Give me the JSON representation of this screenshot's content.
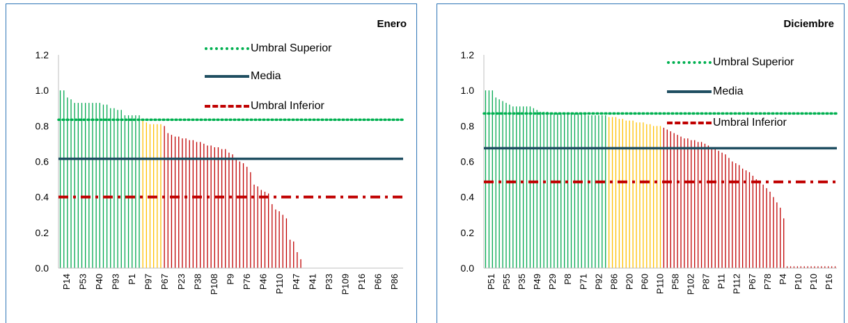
{
  "charts": [
    {
      "title": "Enero",
      "type": "bar",
      "ylim": [
        0,
        1.2
      ],
      "yticks": [
        "0.0",
        "0.2",
        "0.4",
        "0.6",
        "0.8",
        "1.0",
        "1.2"
      ],
      "xticks": [
        "P14",
        "P53",
        "P40",
        "P93",
        "P1",
        "P97",
        "P67",
        "P23",
        "P38",
        "P108",
        "P9",
        "P76",
        "P46",
        "P110",
        "P47",
        "P41",
        "P33",
        "P109",
        "P16",
        "P66",
        "P86"
      ],
      "values": [
        1.0,
        1.0,
        0.96,
        0.95,
        0.93,
        0.93,
        0.93,
        0.93,
        0.93,
        0.93,
        0.93,
        0.93,
        0.92,
        0.92,
        0.9,
        0.9,
        0.89,
        0.89,
        0.86,
        0.86,
        0.86,
        0.86,
        0.86,
        0.84,
        0.82,
        0.81,
        0.81,
        0.81,
        0.81,
        0.8,
        0.76,
        0.75,
        0.74,
        0.74,
        0.73,
        0.73,
        0.72,
        0.72,
        0.71,
        0.71,
        0.7,
        0.69,
        0.69,
        0.68,
        0.68,
        0.67,
        0.67,
        0.65,
        0.64,
        0.61,
        0.6,
        0.59,
        0.57,
        0.54,
        0.47,
        0.46,
        0.44,
        0.43,
        0.42,
        0.36,
        0.33,
        0.32,
        0.3,
        0.28,
        0.16,
        0.15,
        0.09,
        0.05,
        0,
        0,
        0,
        0,
        0,
        0,
        0,
        0,
        0,
        0,
        0,
        0,
        0,
        0,
        0,
        0,
        0,
        0,
        0,
        0,
        0,
        0,
        0,
        0,
        0,
        0,
        0,
        0
      ],
      "segments": [
        {
          "end": 23,
          "color": "#00a84f"
        },
        {
          "end": 29,
          "color": "#ffc000"
        },
        {
          "end": 96,
          "color": "#c00000"
        }
      ],
      "umbral_superior": 0.835,
      "media": 0.615,
      "umbral_inferior": 0.4
    },
    {
      "title": "Diciembre",
      "type": "bar",
      "ylim": [
        0,
        1.2
      ],
      "yticks": [
        "0.0",
        "0.2",
        "0.4",
        "0.6",
        "0.8",
        "1.0",
        "1.2"
      ],
      "xticks": [
        "P51",
        "P55",
        "P35",
        "P49",
        "P29",
        "P8",
        "P71",
        "P92",
        "P86",
        "P20",
        "P60",
        "P110",
        "P58",
        "P102",
        "P87",
        "P11",
        "P112",
        "P67",
        "P78",
        "P4",
        "P10",
        "P10",
        "P16"
      ],
      "values": [
        1.0,
        1.0,
        1.0,
        0.96,
        0.95,
        0.94,
        0.93,
        0.92,
        0.91,
        0.91,
        0.91,
        0.91,
        0.91,
        0.91,
        0.9,
        0.89,
        0.88,
        0.88,
        0.88,
        0.87,
        0.87,
        0.87,
        0.87,
        0.87,
        0.87,
        0.87,
        0.87,
        0.87,
        0.87,
        0.87,
        0.86,
        0.86,
        0.86,
        0.86,
        0.86,
        0.86,
        0.85,
        0.85,
        0.85,
        0.84,
        0.84,
        0.83,
        0.83,
        0.83,
        0.82,
        0.82,
        0.82,
        0.81,
        0.81,
        0.8,
        0.8,
        0.8,
        0.79,
        0.78,
        0.77,
        0.76,
        0.75,
        0.74,
        0.73,
        0.73,
        0.72,
        0.72,
        0.71,
        0.71,
        0.7,
        0.69,
        0.68,
        0.67,
        0.66,
        0.65,
        0.64,
        0.62,
        0.6,
        0.59,
        0.58,
        0.56,
        0.55,
        0.54,
        0.52,
        0.5,
        0.49,
        0.47,
        0.45,
        0.43,
        0.4,
        0.37,
        0.34,
        0.28,
        0.01,
        0.01,
        0.01,
        0.01,
        0.01,
        0.01,
        0.01,
        0.01,
        0.01,
        0.01,
        0.01,
        0.01,
        0.01,
        0.01,
        0.01
      ],
      "segments": [
        {
          "end": 36,
          "color": "#00a84f"
        },
        {
          "end": 52,
          "color": "#ffc000"
        },
        {
          "end": 103,
          "color": "#c00000"
        }
      ],
      "umbral_superior": 0.87,
      "media": 0.675,
      "umbral_inferior": 0.485
    }
  ],
  "legend": {
    "umbral_superior": "Umbral Superior",
    "media": "Media",
    "umbral_inferior": "Umbral Inferior"
  },
  "colors": {
    "umbral_superior": "#00b050",
    "media": "#1f4e61",
    "umbral_inferior": "#c00000"
  }
}
